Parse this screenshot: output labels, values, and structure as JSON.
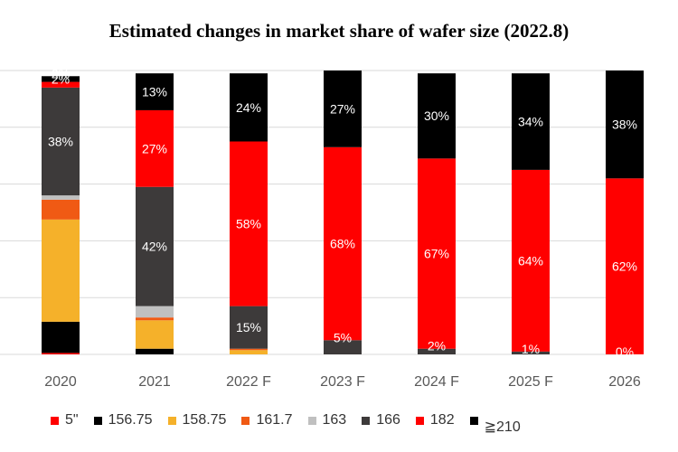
{
  "chart_data": {
    "type": "bar",
    "stacked": true,
    "title": "Estimated changes in market share of wafer size (2022.8)",
    "categories": [
      "2020",
      "2021",
      "2022 F",
      "2023 F",
      "2024 F",
      "2025 F",
      "2026"
    ],
    "ylim": [
      0,
      100
    ],
    "grid": true,
    "legend": "bottom",
    "series": [
      {
        "name": "5\"",
        "color": "#ff0000",
        "values": [
          0.5,
          0,
          0,
          0,
          0,
          0,
          0
        ]
      },
      {
        "name": "156.75",
        "color": "#000000",
        "values": [
          11,
          2,
          0,
          0,
          0,
          0,
          0
        ]
      },
      {
        "name": "158.75",
        "color": "#f5b12a",
        "values": [
          36,
          10,
          1.5,
          0,
          0,
          0,
          0
        ]
      },
      {
        "name": "161.7",
        "color": "#f05a14",
        "values": [
          7,
          1,
          0.5,
          0,
          0,
          0,
          0
        ]
      },
      {
        "name": "163",
        "color": "#c0c0c0",
        "values": [
          1.5,
          4,
          0,
          0,
          0,
          0,
          0
        ]
      },
      {
        "name": "166",
        "color": "#3d3a3a",
        "values": [
          38,
          42,
          15,
          5,
          2,
          1,
          0
        ]
      },
      {
        "name": "182",
        "color": "#ff0000",
        "values": [
          2,
          27,
          58,
          68,
          67,
          64,
          62
        ]
      },
      {
        "name": "≧210",
        "color": "#000000",
        "values": [
          2,
          13,
          24,
          27,
          30,
          34,
          38
        ]
      }
    ],
    "data_labels": [
      [
        {
          "series": "166",
          "text": "38%"
        },
        {
          "series": "182",
          "text": "2%"
        },
        {
          "series": "≧210",
          "text": "2%"
        }
      ],
      [
        {
          "series": "166",
          "text": "42%"
        },
        {
          "series": "182",
          "text": "27%"
        },
        {
          "series": "≧210",
          "text": "13%"
        }
      ],
      [
        {
          "series": "166",
          "text": "15%"
        },
        {
          "series": "182",
          "text": "58%"
        },
        {
          "series": "≧210",
          "text": "24%"
        }
      ],
      [
        {
          "series": "166",
          "text": "5%"
        },
        {
          "series": "182",
          "text": "68%"
        },
        {
          "series": "≧210",
          "text": "27%"
        }
      ],
      [
        {
          "series": "166",
          "text": "2%"
        },
        {
          "series": "182",
          "text": "67%"
        },
        {
          "series": "≧210",
          "text": "30%"
        }
      ],
      [
        {
          "series": "166",
          "text": "1%"
        },
        {
          "series": "182",
          "text": "64%"
        },
        {
          "series": "≧210",
          "text": "34%"
        }
      ],
      [
        {
          "series": "166",
          "text": "0%"
        },
        {
          "series": "182",
          "text": "62%"
        },
        {
          "series": "≧210",
          "text": "38%"
        }
      ]
    ]
  }
}
